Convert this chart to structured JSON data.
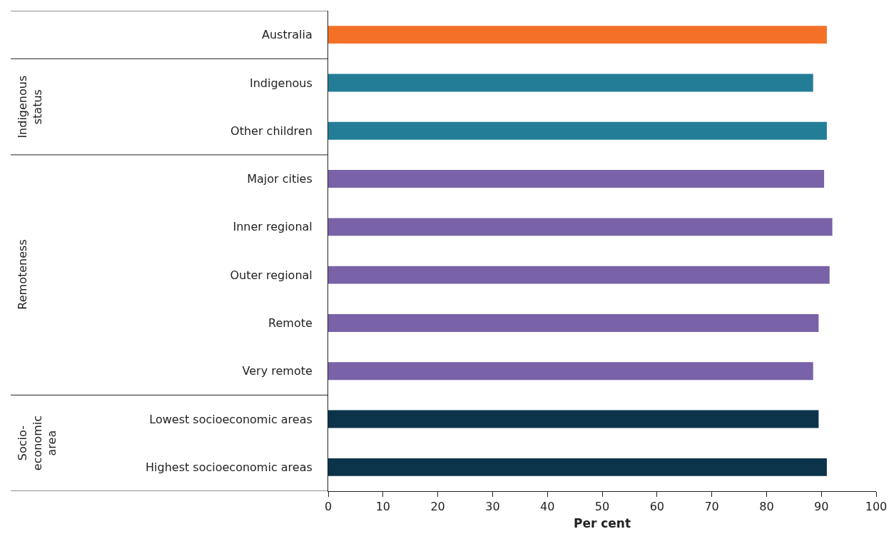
{
  "chart_data": {
    "type": "bar",
    "orientation": "horizontal",
    "xlabel": "Per cent",
    "categories": [
      "Australia",
      "Indigenous",
      "Other children",
      "Major cities",
      "Inner regional",
      "Outer regional",
      "Remote",
      "Very remote",
      "Lowest socioeconomic areas",
      "Highest socioeconomic areas"
    ],
    "values": [
      91,
      88.5,
      91,
      90.5,
      92,
      91.5,
      89.5,
      88.5,
      89.5,
      91
    ],
    "colors": [
      "#f47027",
      "#247d96",
      "#247d96",
      "#7962a8",
      "#7962a8",
      "#7962a8",
      "#7962a8",
      "#7962a8",
      "#0b344a",
      "#0b344a"
    ],
    "xlim": [
      0,
      100
    ],
    "xticks": [
      0,
      10,
      20,
      30,
      40,
      50,
      60,
      70,
      80,
      90,
      100
    ],
    "annotations": [
      "Indigenous status",
      "Remoteness",
      "Socio-economic area"
    ]
  }
}
